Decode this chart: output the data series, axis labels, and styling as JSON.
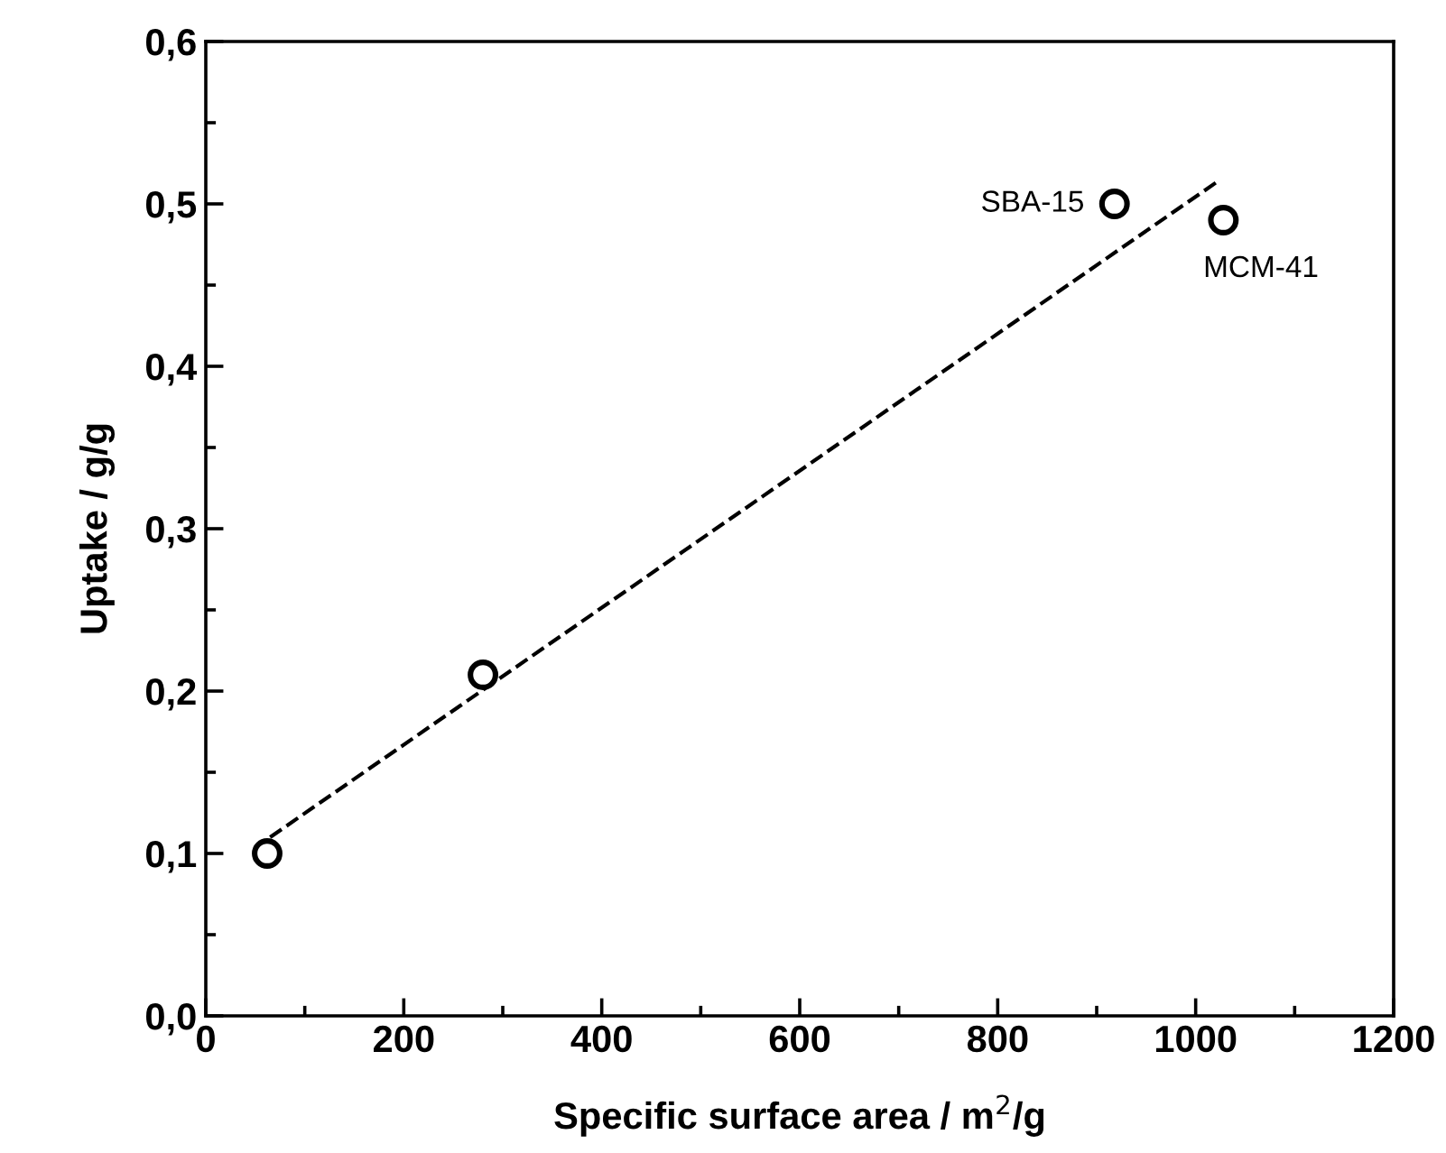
{
  "chart_data": {
    "type": "scatter",
    "xlabel": "Specific surface area / m$^{2}$/g",
    "ylabel": "Uptake / g/g",
    "series": [
      {
        "x": [
          62,
          280,
          918,
          1028
        ],
        "values": [
          0.1,
          0.21,
          0.5,
          0.49
        ],
        "color": "#000000",
        "marker": "circle"
      },
      {
        "type": "line",
        "x": [
          65,
          1025
        ],
        "values": [
          0.11,
          0.515
        ],
        "color": "#000000",
        "line_style": "dashed",
        "marker": "none"
      }
    ],
    "annotations": [
      {
        "text": "SBA-15",
        "x": 918,
        "y": 0.5
      },
      {
        "text": "MCM-41",
        "x": 1028,
        "y": 0.49
      }
    ],
    "xlim": [
      0,
      1200
    ],
    "xticks": [
      0,
      200,
      400,
      600,
      800,
      1000,
      1200
    ],
    "ylim": [
      0,
      0.6
    ],
    "yticks": [
      {
        "value": 0,
        "label": "0,0"
      },
      {
        "value": 0.1,
        "label": "0,1"
      },
      {
        "value": 0.2,
        "label": "0,2"
      },
      {
        "value": 0.3,
        "label": "0,3"
      },
      {
        "value": 0.4,
        "label": "0,4"
      },
      {
        "value": 0.5,
        "label": "0,5"
      },
      {
        "value": 0.6,
        "label": "0,6"
      }
    ],
    "grid": false,
    "legend": false
  }
}
